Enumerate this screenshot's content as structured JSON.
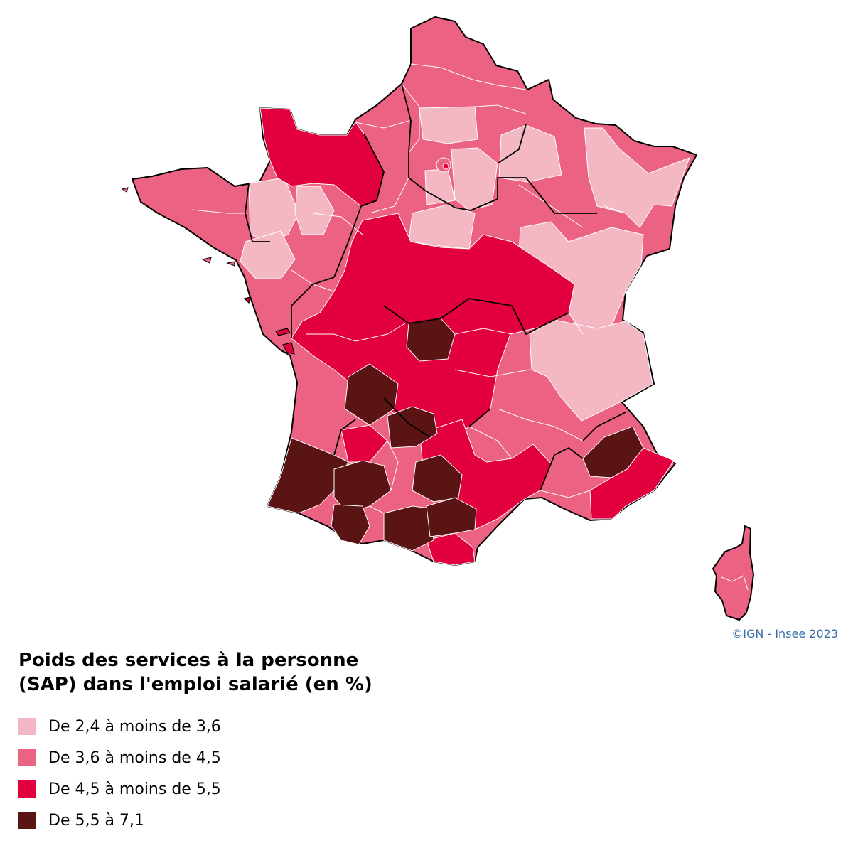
{
  "map": {
    "credit": "©IGN - Insee 2023",
    "legend": {
      "title_line1": "Poids des services à la personne",
      "title_line2": "(SAP) dans l'emploi salarié (en %)",
      "classes": [
        {
          "label": "De 2,4 à moins de 3,6",
          "color": "#f4b8c5"
        },
        {
          "label": "De 3,6 à moins de 4,5",
          "color": "#eb6282"
        },
        {
          "label": "De 4,5 à moins de 5,5",
          "color": "#e2003e"
        },
        {
          "label": "De 5,5 à 7,1",
          "color": "#5a1414"
        }
      ]
    }
  }
}
